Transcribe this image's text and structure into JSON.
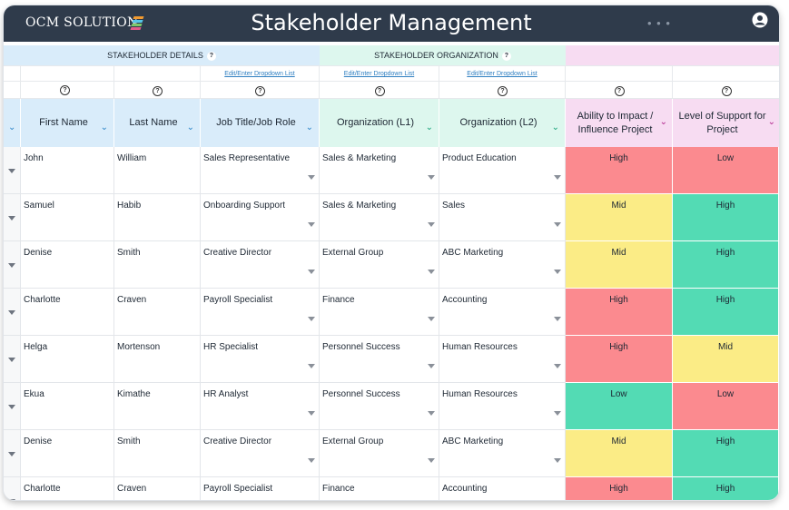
{
  "app": {
    "logo_text": "OCM SOLUTION",
    "title": "Stakeholder Management",
    "menu_dots": "• • •"
  },
  "sections": {
    "details": {
      "label": "STAKEHOLDER DETAILS",
      "help": "?"
    },
    "organization": {
      "label": "STAKEHOLDER ORGANIZATION",
      "help": "?"
    }
  },
  "edit_links": {
    "job_title": "Edit/Enter Dropdown List",
    "org_l1": "Edit/Enter Dropdown List",
    "org_l2": "Edit/Enter Dropdown List"
  },
  "help_glyph": "?",
  "columns": {
    "first_name": "First Name",
    "last_name": "Last Name",
    "job_title": "Job Title/Job Role",
    "org_l1": "Organization (L1)",
    "org_l2": "Organization (L2)",
    "impact": "Ability to Impact / Influence Project",
    "support": "Level of Support for Project"
  },
  "rows": [
    {
      "first": "John",
      "last": "William",
      "job": "Sales Representative",
      "org1": "Sales & Marketing",
      "org2": "Product Education",
      "impact": "High",
      "support": "Low"
    },
    {
      "first": "Samuel",
      "last": "Habib",
      "job": "Onboarding Support",
      "org1": "Sales & Marketing",
      "org2": "Sales",
      "impact": "Mid",
      "support": "High"
    },
    {
      "first": "Denise",
      "last": "Smith",
      "job": "Creative Director",
      "org1": "External Group",
      "org2": "ABC Marketing",
      "impact": "Mid",
      "support": "High"
    },
    {
      "first": "Charlotte",
      "last": "Craven",
      "job": "Payroll Specialist",
      "org1": "Finance",
      "org2": "Accounting",
      "impact": "High",
      "support": "High"
    },
    {
      "first": "Helga",
      "last": "Mortenson",
      "job": "HR Specialist",
      "org1": "Personnel Success",
      "org2": "Human Resources",
      "impact": "High",
      "support": "Mid"
    },
    {
      "first": "Ekua",
      "last": "Kimathe",
      "job": "HR Analyst",
      "org1": "Personnel Success",
      "org2": "Human Resources",
      "impact": "Low",
      "support": "Low"
    },
    {
      "first": "Denise",
      "last": "Smith",
      "job": "Creative Director",
      "org1": "External Group",
      "org2": "ABC Marketing",
      "impact": "Mid",
      "support": "High"
    },
    {
      "first": "Charlotte",
      "last": "Craven",
      "job": "Payroll Specialist",
      "org1": "Finance",
      "org2": "Accounting",
      "impact": "High",
      "support": "High"
    }
  ],
  "colors": {
    "titlebar": "#2f3b4b",
    "details_header": "#d9ecfa",
    "org_header": "#ddf7ee",
    "rating_header": "#f7dcf2",
    "High_impact": "#fb8a8f",
    "Mid_impact": "#fbec86",
    "Low_impact": "#53dbb4",
    "High_support": "#53dbb4",
    "Mid_support": "#fbec86",
    "Low_support": "#fb8a8f"
  }
}
